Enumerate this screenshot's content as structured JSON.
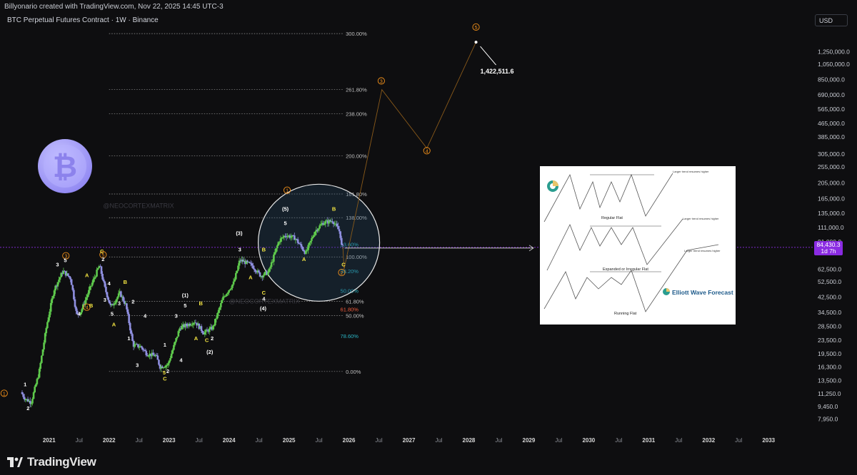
{
  "header": {
    "attribution": "Billyonario created with TradingView.com, Nov 22, 2025 14:45 UTC-3",
    "symbol": "BTC Perpetual Futures Contract · 1W · Binance"
  },
  "currency": "USD",
  "current_price": {
    "value": "84,430.3",
    "countdown": "1d 7h"
  },
  "target_label": "1,422,511.6",
  "watermark": "@NEOCORTEXMATRIX",
  "footer": {
    "brand": "TradingView"
  },
  "colors": {
    "background": "#0e0e10",
    "bull_candle": "#5ec94c",
    "bear_candle": "#8f8fe0",
    "wave_orange": "#f7931a",
    "wave_yellow": "#f5e642",
    "current_price_line": "#8a2be2",
    "fib_cyan": "#2bb5c5",
    "fib_red": "#f25c3c"
  },
  "reference_panel": {
    "title_1": "Regular Flat",
    "title_2": "Expanded or Irregular Flat",
    "title_3": "Running Flat",
    "note_1": "Larger trend resumes higher",
    "note_2": "Larger trend resumes higher",
    "note_3": "Larger trend resumes higher",
    "brand": "Elliott Wave Forecast"
  },
  "chart_data": {
    "type": "candlestick",
    "title": "BTC Perpetual Futures Contract · 1W · Binance",
    "y_scale": "log",
    "ylim": [
      6500,
      1750000
    ],
    "xlim": [
      2020.3,
      2033.7
    ],
    "y_ticks": [
      1250000,
      1050000,
      850000,
      690000,
      565000,
      465000,
      385000,
      305000,
      255000,
      205000,
      165000,
      135000,
      111000,
      91000,
      62500,
      52500,
      42500,
      34500,
      28500,
      23500,
      19500,
      16300,
      13500,
      11250,
      9450,
      7950
    ],
    "y_tick_labels": [
      "1,250,000.0",
      "1,050,000.0",
      "850,000.0",
      "690,000.0",
      "565,000.0",
      "465,000.0",
      "385,000.0",
      "305,000.0",
      "255,000.0",
      "205,000.0",
      "165,000.0",
      "135,000.0",
      "111,000.0",
      "91,000.0",
      "62,500.0",
      "52,500.0",
      "42,500.0",
      "34,500.0",
      "28,500.0",
      "23,500.0",
      "19,500.0",
      "16,300.0",
      "13,500.0",
      "11,250.0",
      "9,450.0",
      "7,950.0"
    ],
    "x_ticks": [
      {
        "t": 2021.0,
        "label": "2021",
        "major": true
      },
      {
        "t": 2021.5,
        "label": "Jul",
        "major": false
      },
      {
        "t": 2022.0,
        "label": "2022",
        "major": true
      },
      {
        "t": 2022.5,
        "label": "Jul",
        "major": false
      },
      {
        "t": 2023.0,
        "label": "2023",
        "major": true
      },
      {
        "t": 2023.5,
        "label": "Jul",
        "major": false
      },
      {
        "t": 2024.0,
        "label": "2024",
        "major": true
      },
      {
        "t": 2024.5,
        "label": "Jul",
        "major": false
      },
      {
        "t": 2025.0,
        "label": "2025",
        "major": true
      },
      {
        "t": 2025.5,
        "label": "Jul",
        "major": false
      },
      {
        "t": 2026.0,
        "label": "2026",
        "major": true
      },
      {
        "t": 2026.5,
        "label": "Jul",
        "major": false
      },
      {
        "t": 2027.0,
        "label": "2027",
        "major": true
      },
      {
        "t": 2027.5,
        "label": "Jul",
        "major": false
      },
      {
        "t": 2028.0,
        "label": "2028",
        "major": true
      },
      {
        "t": 2028.5,
        "label": "Jul",
        "major": false
      },
      {
        "t": 2029.0,
        "label": "2029",
        "major": true
      },
      {
        "t": 2029.5,
        "label": "Jul",
        "major": false
      },
      {
        "t": 2030.0,
        "label": "2030",
        "major": true
      },
      {
        "t": 2030.5,
        "label": "Jul",
        "major": false
      },
      {
        "t": 2031.0,
        "label": "2031",
        "major": true
      },
      {
        "t": 2031.5,
        "label": "Jul",
        "major": false
      },
      {
        "t": 2032.0,
        "label": "2032",
        "major": true
      },
      {
        "t": 2032.5,
        "label": "Jul",
        "major": false
      },
      {
        "t": 2033.0,
        "label": "2033",
        "major": true
      }
    ],
    "price_path": [
      [
        2020.55,
        11500
      ],
      [
        2020.62,
        10500
      ],
      [
        2020.72,
        10000
      ],
      [
        2020.85,
        15000
      ],
      [
        2020.98,
        29000
      ],
      [
        2021.1,
        47000
      ],
      [
        2021.25,
        61000
      ],
      [
        2021.38,
        55000
      ],
      [
        2021.48,
        33000
      ],
      [
        2021.55,
        35000
      ],
      [
        2021.7,
        48000
      ],
      [
        2021.86,
        66000
      ],
      [
        2021.95,
        48000
      ],
      [
        2022.05,
        37000
      ],
      [
        2022.2,
        45000
      ],
      [
        2022.3,
        38000
      ],
      [
        2022.42,
        22000
      ],
      [
        2022.55,
        21500
      ],
      [
        2022.65,
        19500
      ],
      [
        2022.8,
        19000
      ],
      [
        2022.87,
        16300
      ],
      [
        2023.0,
        16800
      ],
      [
        2023.2,
        28000
      ],
      [
        2023.32,
        29000
      ],
      [
        2023.45,
        30500
      ],
      [
        2023.6,
        26000
      ],
      [
        2023.75,
        28000
      ],
      [
        2023.92,
        42000
      ],
      [
        2024.1,
        52000
      ],
      [
        2024.2,
        71000
      ],
      [
        2024.4,
        66000
      ],
      [
        2024.55,
        57000
      ],
      [
        2024.68,
        60000
      ],
      [
        2024.85,
        92000
      ],
      [
        2024.96,
        100000
      ],
      [
        2025.12,
        96000
      ],
      [
        2025.3,
        78000
      ],
      [
        2025.45,
        105000
      ],
      [
        2025.58,
        118000
      ],
      [
        2025.75,
        122000
      ],
      [
        2025.87,
        104000
      ],
      [
        2025.9,
        84430
      ]
    ],
    "fib_levels": [
      {
        "pct": "300.00%",
        "price": 1600000
      },
      {
        "pct": "261.80%",
        "price": 740000
      },
      {
        "pct": "238.00%",
        "price": 530000
      },
      {
        "pct": "200.00%",
        "price": 298000
      },
      {
        "pct": "161.80%",
        "price": 176000
      },
      {
        "pct": "138.00%",
        "price": 127000
      },
      {
        "pct": "100.00%",
        "price": 74000
      },
      {
        "pct": "61.80%",
        "price": 40200
      },
      {
        "pct": "50.00%",
        "price": 33000
      },
      {
        "pct": "0.00%",
        "price": 15300
      }
    ],
    "correction_fibs": [
      {
        "pct": "23.60%",
        "price": 88000,
        "color": "#2bb5c5"
      },
      {
        "pct": "38.20%",
        "price": 61000,
        "color": "#2bb5c5"
      },
      {
        "pct": "50.00%",
        "price": 46500,
        "color": "#2bb5c5"
      },
      {
        "pct": "61.80%",
        "price": 36000,
        "color": "#f25c3c"
      },
      {
        "pct": "78.60%",
        "price": 25000,
        "color": "#2bb5c5"
      }
    ],
    "forecast_path": [
      [
        2025.9,
        84430
      ],
      [
        2025.92,
        62500
      ],
      [
        2026.55,
        740000
      ],
      [
        2027.3,
        330000
      ],
      [
        2028.12,
        1422511.6
      ]
    ],
    "wave_labels": [
      {
        "t": 2020.25,
        "p": 11000,
        "text": "1",
        "style": "orange-circle"
      },
      {
        "t": 2021.28,
        "p": 73000,
        "text": "3",
        "style": "orange-circle"
      },
      {
        "t": 2021.63,
        "p": 36000,
        "text": "4",
        "style": "orange-circle"
      },
      {
        "t": 2021.9,
        "p": 74000,
        "text": "5",
        "style": "orange-circle"
      },
      {
        "t": 2024.97,
        "p": 180000,
        "text": "1",
        "style": "orange-circle"
      },
      {
        "t": 2025.88,
        "p": 58000,
        "text": "2",
        "style": "orange-circle"
      },
      {
        "t": 2026.54,
        "p": 810000,
        "text": "3",
        "style": "orange-circle"
      },
      {
        "t": 2027.3,
        "p": 310000,
        "text": "4",
        "style": "orange-circle"
      },
      {
        "t": 2028.12,
        "p": 1700000,
        "text": "5",
        "style": "orange-circle"
      },
      {
        "t": 2020.6,
        "p": 12500,
        "text": "1",
        "style": "white"
      },
      {
        "t": 2020.65,
        "p": 9000,
        "text": "2",
        "style": "white"
      },
      {
        "t": 2021.14,
        "p": 65000,
        "text": "3",
        "style": "white"
      },
      {
        "t": 2021.5,
        "p": 33000,
        "text": "4",
        "style": "white"
      },
      {
        "t": 2021.27,
        "p": 69000,
        "text": "5",
        "style": "white"
      },
      {
        "t": 2021.9,
        "p": 70000,
        "text": "2",
        "style": "white"
      },
      {
        "t": 2021.93,
        "p": 40000,
        "text": "3",
        "style": "white"
      },
      {
        "t": 2022.0,
        "p": 50000,
        "text": "4",
        "style": "white"
      },
      {
        "t": 2022.05,
        "p": 33000,
        "text": "5",
        "style": "white"
      },
      {
        "t": 2022.17,
        "p": 38000,
        "text": "3",
        "style": "white"
      },
      {
        "t": 2022.4,
        "p": 39000,
        "text": "2",
        "style": "white"
      },
      {
        "t": 2022.33,
        "p": 23500,
        "text": "1",
        "style": "white"
      },
      {
        "t": 2022.6,
        "p": 32000,
        "text": "4",
        "style": "white"
      },
      {
        "t": 2022.47,
        "p": 16300,
        "text": "3",
        "style": "white"
      },
      {
        "t": 2022.93,
        "p": 21500,
        "text": "1",
        "style": "white"
      },
      {
        "t": 2022.98,
        "p": 15000,
        "text": "2",
        "style": "white"
      },
      {
        "t": 2023.2,
        "p": 17400,
        "text": "4",
        "style": "white"
      },
      {
        "t": 2023.12,
        "p": 32000,
        "text": "3",
        "style": "white"
      },
      {
        "t": 2023.27,
        "p": 37000,
        "text": "5",
        "style": "white"
      },
      {
        "t": 2023.27,
        "p": 42500,
        "text": "(1)",
        "style": "white"
      },
      {
        "t": 2023.72,
        "p": 23500,
        "text": "2",
        "style": "white"
      },
      {
        "t": 2023.68,
        "p": 19500,
        "text": "(2)",
        "style": "white"
      },
      {
        "t": 2024.18,
        "p": 80000,
        "text": "3",
        "style": "white"
      },
      {
        "t": 2024.17,
        "p": 100000,
        "text": "(3)",
        "style": "white"
      },
      {
        "t": 2024.57,
        "p": 35500,
        "text": "(4)",
        "style": "white"
      },
      {
        "t": 2024.58,
        "p": 40500,
        "text": "4",
        "style": "white"
      },
      {
        "t": 2024.94,
        "p": 115000,
        "text": "5",
        "style": "white"
      },
      {
        "t": 2024.94,
        "p": 140000,
        "text": "(5)",
        "style": "white"
      },
      {
        "t": 2021.63,
        "p": 56000,
        "text": "A",
        "style": "yellow"
      },
      {
        "t": 2021.7,
        "p": 37000,
        "text": "B",
        "style": "yellow"
      },
      {
        "t": 2021.88,
        "p": 78000,
        "text": "C",
        "style": "yellow"
      },
      {
        "t": 2022.27,
        "p": 51000,
        "text": "B",
        "style": "yellow"
      },
      {
        "t": 2022.08,
        "p": 28500,
        "text": "A",
        "style": "yellow"
      },
      {
        "t": 2022.93,
        "p": 13500,
        "text": "C",
        "style": "yellow"
      },
      {
        "t": 2022.92,
        "p": 14700,
        "text": "5",
        "style": "yellow"
      },
      {
        "t": 2023.45,
        "p": 23500,
        "text": "A",
        "style": "yellow"
      },
      {
        "t": 2023.53,
        "p": 38000,
        "text": "B",
        "style": "yellow"
      },
      {
        "t": 2023.63,
        "p": 23000,
        "text": "C",
        "style": "yellow"
      },
      {
        "t": 2024.36,
        "p": 54500,
        "text": "A",
        "style": "yellow"
      },
      {
        "t": 2024.58,
        "p": 80000,
        "text": "B",
        "style": "yellow"
      },
      {
        "t": 2024.58,
        "p": 44000,
        "text": "C",
        "style": "yellow"
      },
      {
        "t": 2025.25,
        "p": 70000,
        "text": "A",
        "style": "yellow"
      },
      {
        "t": 2025.75,
        "p": 140000,
        "text": "B",
        "style": "yellow"
      },
      {
        "t": 2025.91,
        "p": 65000,
        "text": "C",
        "style": "yellow"
      }
    ]
  }
}
